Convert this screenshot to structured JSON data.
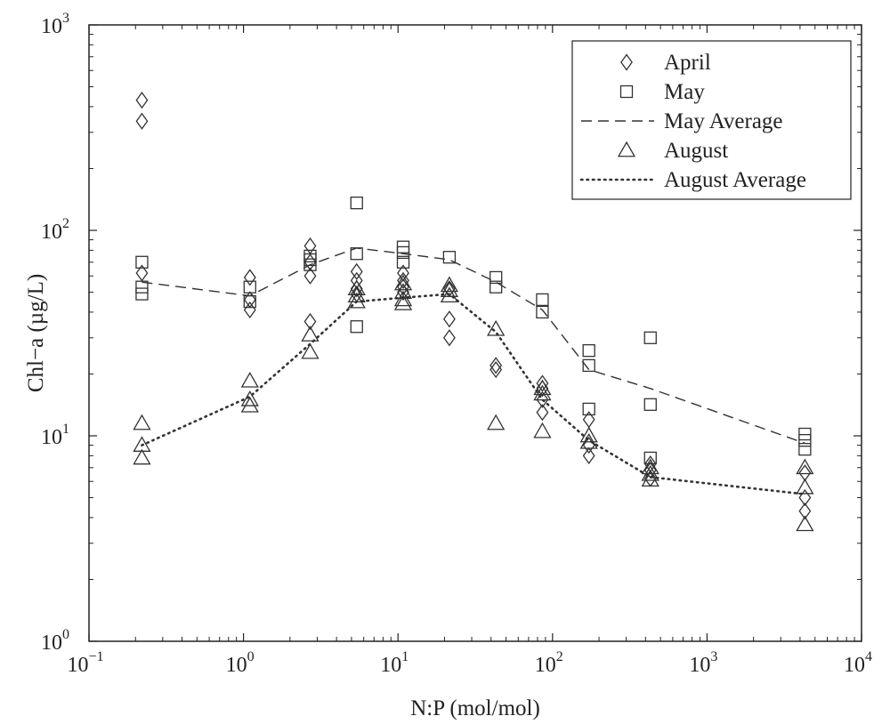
{
  "chart_data": {
    "type": "scatter",
    "xscale": "log",
    "yscale": "log",
    "xlim": [
      0.1,
      10000
    ],
    "ylim": [
      1,
      1000
    ],
    "xlabel": "N:P (mol/mol)",
    "ylabel": "Chl−a (µg/L)",
    "grid": false,
    "legend_position": "top-right",
    "x_ticks": [
      {
        "base": "10",
        "exp": "−1",
        "value": 0.1
      },
      {
        "base": "10",
        "exp": "0",
        "value": 1
      },
      {
        "base": "10",
        "exp": "1",
        "value": 10
      },
      {
        "base": "10",
        "exp": "2",
        "value": 100
      },
      {
        "base": "10",
        "exp": "3",
        "value": 1000
      },
      {
        "base": "10",
        "exp": "4",
        "value": 10000
      }
    ],
    "y_ticks": [
      {
        "base": "10",
        "exp": "0",
        "value": 1
      },
      {
        "base": "10",
        "exp": "1",
        "value": 10
      },
      {
        "base": "10",
        "exp": "2",
        "value": 100
      },
      {
        "base": "10",
        "exp": "3",
        "value": 1000
      }
    ],
    "series": [
      {
        "name": "April",
        "marker": "diamond",
        "points": [
          [
            0.22,
            430
          ],
          [
            0.22,
            340
          ],
          [
            0.22,
            62
          ],
          [
            1.1,
            59
          ],
          [
            1.1,
            46
          ],
          [
            1.1,
            41
          ],
          [
            2.7,
            84
          ],
          [
            2.7,
            70
          ],
          [
            2.7,
            60
          ],
          [
            2.7,
            36
          ],
          [
            5.4,
            63
          ],
          [
            5.4,
            57
          ],
          [
            5.4,
            52
          ],
          [
            5.4,
            49
          ],
          [
            10.8,
            62
          ],
          [
            10.8,
            57
          ],
          [
            10.8,
            53
          ],
          [
            10.8,
            50
          ],
          [
            21.5,
            52
          ],
          [
            21.5,
            37
          ],
          [
            21.5,
            30
          ],
          [
            43,
            22
          ],
          [
            43,
            21
          ],
          [
            86,
            18
          ],
          [
            86,
            17
          ],
          [
            86,
            15
          ],
          [
            86,
            13
          ],
          [
            172,
            12
          ],
          [
            172,
            9
          ],
          [
            172,
            8
          ],
          [
            430,
            7.3
          ],
          [
            430,
            6.8
          ],
          [
            430,
            6.2
          ],
          [
            4300,
            6.6
          ],
          [
            4300,
            5
          ],
          [
            4300,
            4.3
          ]
        ]
      },
      {
        "name": "May",
        "marker": "square",
        "points": [
          [
            0.22,
            70
          ],
          [
            0.22,
            53
          ],
          [
            0.22,
            49
          ],
          [
            1.1,
            53
          ],
          [
            1.1,
            45
          ],
          [
            2.7,
            75
          ],
          [
            2.7,
            72
          ],
          [
            2.7,
            68
          ],
          [
            5.4,
            136
          ],
          [
            5.4,
            77
          ],
          [
            5.4,
            34
          ],
          [
            10.8,
            83
          ],
          [
            10.8,
            78
          ],
          [
            10.8,
            70
          ],
          [
            21.5,
            74
          ],
          [
            43,
            59
          ],
          [
            43,
            53
          ],
          [
            86,
            46
          ],
          [
            86,
            40
          ],
          [
            172,
            26
          ],
          [
            172,
            22
          ],
          [
            172,
            13.5
          ],
          [
            430,
            30
          ],
          [
            430,
            14.2
          ],
          [
            430,
            7.8
          ],
          [
            4300,
            10.2
          ],
          [
            4300,
            9.5
          ],
          [
            4300,
            8.6
          ]
        ]
      },
      {
        "name": "August",
        "marker": "triangle",
        "points": [
          [
            0.22,
            11.5
          ],
          [
            0.22,
            9
          ],
          [
            0.22,
            7.8
          ],
          [
            1.1,
            18.5
          ],
          [
            1.1,
            15
          ],
          [
            1.1,
            14
          ],
          [
            2.7,
            31
          ],
          [
            2.7,
            25.5
          ],
          [
            5.4,
            52
          ],
          [
            5.4,
            48
          ],
          [
            5.4,
            45
          ],
          [
            10.8,
            55
          ],
          [
            10.8,
            50
          ],
          [
            10.8,
            46
          ],
          [
            10.8,
            44
          ],
          [
            21.5,
            54
          ],
          [
            21.5,
            51
          ],
          [
            21.5,
            48
          ],
          [
            43,
            33
          ],
          [
            43,
            11.5
          ],
          [
            86,
            17
          ],
          [
            86,
            16
          ],
          [
            86,
            10.5
          ],
          [
            172,
            10
          ],
          [
            172,
            9.3
          ],
          [
            430,
            7
          ],
          [
            430,
            6.5
          ],
          [
            430,
            6.1
          ],
          [
            4300,
            7
          ],
          [
            4300,
            5.6
          ],
          [
            4300,
            3.7
          ]
        ]
      },
      {
        "name": "May Average",
        "style": "dashed",
        "points": [
          [
            0.22,
            56
          ],
          [
            1.1,
            48
          ],
          [
            2.7,
            68
          ],
          [
            5.4,
            82
          ],
          [
            10.8,
            77
          ],
          [
            21.5,
            72
          ],
          [
            43,
            56
          ],
          [
            86,
            41
          ],
          [
            172,
            21
          ],
          [
            430,
            17
          ],
          [
            4300,
            9.2
          ]
        ]
      },
      {
        "name": "August Average",
        "style": "dotted",
        "points": [
          [
            0.22,
            9
          ],
          [
            1.1,
            15.5
          ],
          [
            2.7,
            28
          ],
          [
            5.4,
            45
          ],
          [
            10.8,
            47
          ],
          [
            21.5,
            49
          ],
          [
            43,
            32
          ],
          [
            86,
            15
          ],
          [
            172,
            9.5
          ],
          [
            430,
            6.3
          ],
          [
            4300,
            5.2
          ]
        ]
      }
    ]
  }
}
